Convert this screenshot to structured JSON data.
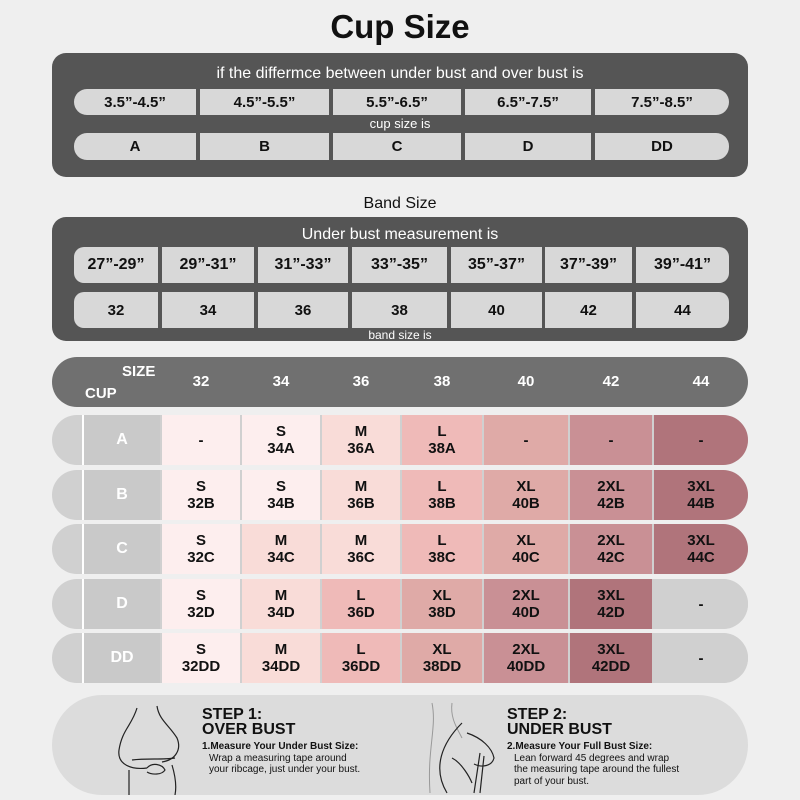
{
  "title": "Cup Size",
  "cup_panel": {
    "heading": "if the differmce between under bust and over bust is",
    "ranges": [
      "3.5”-4.5”",
      "4.5”-5.5”",
      "5.5”-6.5”",
      "6.5”-7.5”",
      "7.5”-8.5”"
    ],
    "middle": "cup size is",
    "cups": [
      "A",
      "B",
      "C",
      "D",
      "DD"
    ]
  },
  "band_title": "Band Size",
  "band_panel": {
    "heading": "Under bust measurement is",
    "ranges": [
      "27”-29”",
      "29”-31”",
      "31”-33”",
      "33”-35”",
      "35”-37”",
      "37”-39”",
      "39”-41”"
    ],
    "bands": [
      "32",
      "34",
      "36",
      "38",
      "40",
      "42",
      "44"
    ],
    "footer": "band size is"
  },
  "size_table": {
    "header_size": "SIZE",
    "header_cup": "CUP",
    "columns": [
      "32",
      "34",
      "36",
      "38",
      "40",
      "42",
      "44"
    ],
    "shade_colors": {
      "S": "#fdeeee",
      "M": "#f9dcd8",
      "L": "#efbab8",
      "XL": "#dfaaa7",
      "2XL": "#c99095",
      "3XL": "#b0747b",
      "none": "#d0d0d0"
    },
    "rows": [
      {
        "cup": "A",
        "cells": [
          {
            "size": "",
            "code": "-",
            "shade": "S"
          },
          {
            "size": "S",
            "code": "34A",
            "shade": "S"
          },
          {
            "size": "M",
            "code": "36A",
            "shade": "M"
          },
          {
            "size": "L",
            "code": "38A",
            "shade": "L"
          },
          {
            "size": "",
            "code": "-",
            "shade": "XL"
          },
          {
            "size": "",
            "code": "-",
            "shade": "2XL"
          },
          {
            "size": "",
            "code": "-",
            "shade": "3XL"
          }
        ]
      },
      {
        "cup": "B",
        "cells": [
          {
            "size": "S",
            "code": "32B",
            "shade": "S"
          },
          {
            "size": "S",
            "code": "34B",
            "shade": "S"
          },
          {
            "size": "M",
            "code": "36B",
            "shade": "M"
          },
          {
            "size": "L",
            "code": "38B",
            "shade": "L"
          },
          {
            "size": "XL",
            "code": "40B",
            "shade": "XL"
          },
          {
            "size": "2XL",
            "code": "42B",
            "shade": "2XL"
          },
          {
            "size": "3XL",
            "code": "44B",
            "shade": "3XL"
          }
        ]
      },
      {
        "cup": "C",
        "cells": [
          {
            "size": "S",
            "code": "32C",
            "shade": "S"
          },
          {
            "size": "M",
            "code": "34C",
            "shade": "M"
          },
          {
            "size": "M",
            "code": "36C",
            "shade": "M"
          },
          {
            "size": "L",
            "code": "38C",
            "shade": "L"
          },
          {
            "size": "XL",
            "code": "40C",
            "shade": "XL"
          },
          {
            "size": "2XL",
            "code": "42C",
            "shade": "2XL"
          },
          {
            "size": "3XL",
            "code": "44C",
            "shade": "3XL"
          }
        ]
      },
      {
        "cup": "D",
        "cells": [
          {
            "size": "S",
            "code": "32D",
            "shade": "S"
          },
          {
            "size": "M",
            "code": "34D",
            "shade": "M"
          },
          {
            "size": "L",
            "code": "36D",
            "shade": "L"
          },
          {
            "size": "XL",
            "code": "38D",
            "shade": "XL"
          },
          {
            "size": "2XL",
            "code": "40D",
            "shade": "2XL"
          },
          {
            "size": "3XL",
            "code": "42D",
            "shade": "3XL"
          },
          {
            "size": "",
            "code": "-",
            "shade": "none"
          }
        ]
      },
      {
        "cup": "DD",
        "cells": [
          {
            "size": "S",
            "code": "32DD",
            "shade": "S"
          },
          {
            "size": "M",
            "code": "34DD",
            "shade": "M"
          },
          {
            "size": "L",
            "code": "36DD",
            "shade": "L"
          },
          {
            "size": "XL",
            "code": "38DD",
            "shade": "XL"
          },
          {
            "size": "2XL",
            "code": "40DD",
            "shade": "2XL"
          },
          {
            "size": "3XL",
            "code": "42DD",
            "shade": "3XL"
          },
          {
            "size": "",
            "code": "-",
            "shade": "none"
          }
        ]
      }
    ]
  },
  "steps": [
    {
      "title1": "STEP 1:",
      "title2": "OVER BUST",
      "desc_title": "1.Measure Your Under Bust Size:",
      "desc": [
        "Wrap a measuring tape around",
        "your ribcage, just under your bust."
      ]
    },
    {
      "title1": "STEP 2:",
      "title2": "UNDER BUST",
      "desc_title": "2.Measure Your Full Bust Size:",
      "desc": [
        "Lean forward 45 degrees and wrap",
        "the measuring tape around the fullest",
        "part of your bust."
      ]
    }
  ]
}
